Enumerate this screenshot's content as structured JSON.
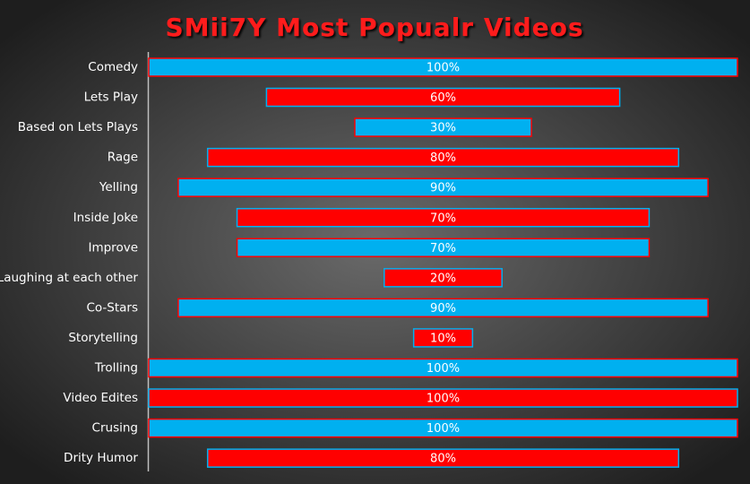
{
  "chart_data": {
    "type": "funnel",
    "title": "SMii7Y Most Popualr Videos",
    "categories": [
      "Comedy",
      "Lets Play",
      "Based on Lets Plays",
      "Rage",
      "Yelling",
      "Inside Joke",
      "Improve",
      "Laughing at each other",
      "Co-Stars",
      "Storytelling",
      "Trolling",
      "Video Edites",
      "Crusing",
      "Drity Humor"
    ],
    "values": [
      100,
      60,
      30,
      80,
      90,
      70,
      70,
      20,
      90,
      10,
      100,
      100,
      100,
      80
    ],
    "value_labels": [
      "100%",
      "60%",
      "30%",
      "80%",
      "90%",
      "70%",
      "70%",
      "20%",
      "90%",
      "10%",
      "100%",
      "100%",
      "100%",
      "80%"
    ],
    "colors": [
      "#00b0f0",
      "#ff0000",
      "#00b0f0",
      "#ff0000",
      "#00b0f0",
      "#ff0000",
      "#00b0f0",
      "#ff0000",
      "#00b0f0",
      "#ff0000",
      "#00b0f0",
      "#ff0000",
      "#00b0f0",
      "#ff0000"
    ],
    "edgecolors": [
      "#ff0000",
      "#00b0f0",
      "#ff0000",
      "#00b0f0",
      "#ff0000",
      "#00b0f0",
      "#ff0000",
      "#00b0f0",
      "#ff0000",
      "#00b0f0",
      "#ff0000",
      "#00b0f0",
      "#ff0000",
      "#00b0f0"
    ],
    "xlim": [
      0,
      100
    ]
  }
}
